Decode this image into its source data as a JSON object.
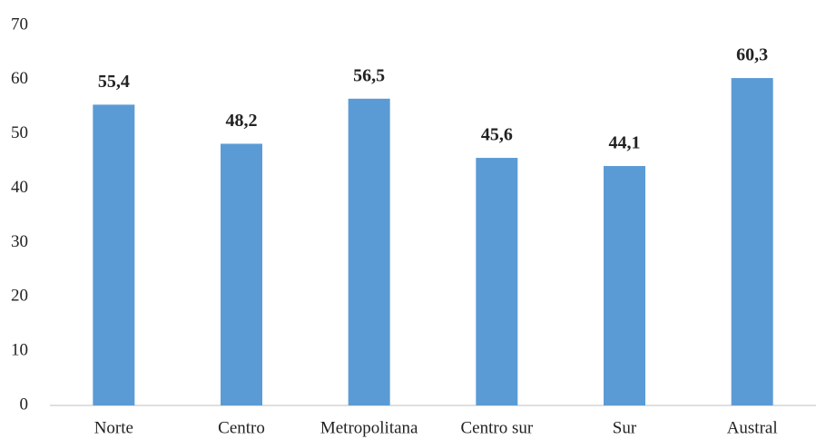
{
  "chart_data": {
    "type": "bar",
    "categories": [
      "Norte",
      "Centro",
      "Metropolitana",
      "Centro sur",
      "Sur",
      "Austral"
    ],
    "values": [
      55.4,
      48.2,
      56.5,
      45.6,
      44.1,
      60.3
    ],
    "value_labels": [
      "55,4",
      "48,2",
      "56,5",
      "45,6",
      "44,1",
      "60,3"
    ],
    "color": "#5b9bd5",
    "ylim": [
      0,
      70
    ],
    "yticks": [
      0,
      10,
      20,
      30,
      40,
      50,
      60,
      70
    ],
    "grid": false
  }
}
